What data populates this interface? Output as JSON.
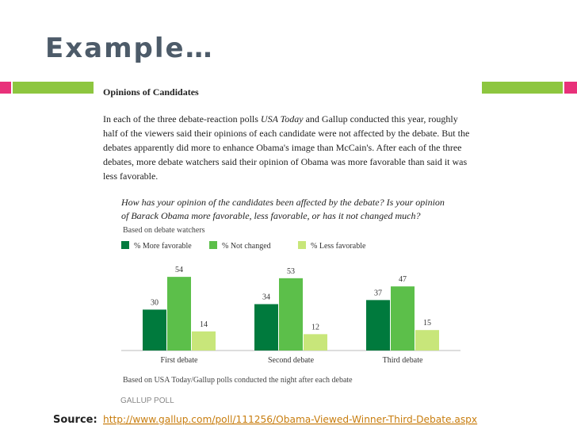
{
  "slide": {
    "title": "Example…",
    "source_label": "Source:",
    "source_url": "http://www.gallup.com/poll/111256/Obama-Viewed-Winner-Third-Debate.aspx"
  },
  "chart_data": {
    "type": "bar",
    "heading": "Opinions of Candidates",
    "paragraph_lines": [
      [
        "In each of the three debate-reaction polls ",
        "USA Today",
        " and Gallup conducted this year, roughly"
      ],
      [
        "half of the viewers said their opinions of each candidate were not affected by the debate. But the"
      ],
      [
        "debates apparently did more to enhance Obama's image than McCain's. After each of the three"
      ],
      [
        "debates, more debate watchers said their opinion of Obama was more favorable than said it was"
      ],
      [
        "less favorable."
      ]
    ],
    "question_lines": [
      "How has your opinion of the candidates been affected by the debate? Is your opinion",
      "of Barack Obama more favorable, less favorable, or has it not changed much?"
    ],
    "subtitle": "Based on debate watchers",
    "categories": [
      "First debate",
      "Second debate",
      "Third debate"
    ],
    "series": [
      {
        "name": "% More favorable",
        "color": "#007a3d",
        "values": [
          30,
          34,
          37
        ]
      },
      {
        "name": "% Not changed",
        "color": "#5cbf4a",
        "values": [
          54,
          53,
          47
        ]
      },
      {
        "name": "% Less favorable",
        "color": "#c8e67a",
        "values": [
          14,
          12,
          15
        ]
      }
    ],
    "footnote": "Based on USA Today/Gallup polls conducted the night after each debate",
    "brand": "GALLUP POLL"
  }
}
